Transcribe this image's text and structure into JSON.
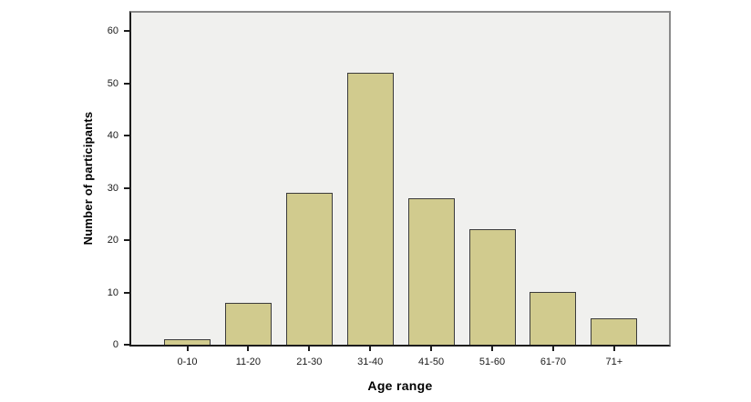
{
  "chart_data": {
    "type": "bar",
    "title": "",
    "xlabel": "Age range",
    "ylabel": "Number of participants",
    "categories": [
      "0-10",
      "11-20",
      "21-30",
      "31-40",
      "41-50",
      "51-60",
      "61-70",
      "71+"
    ],
    "values": [
      1,
      8,
      29,
      52,
      28,
      22,
      10,
      5
    ],
    "yticks": [
      0,
      10,
      20,
      30,
      40,
      50,
      60
    ],
    "ylim": [
      0,
      63
    ],
    "grid": false,
    "legend": null,
    "colors": {
      "bar_fill": "#d1cb8e",
      "bar_border": "#3b3b3b",
      "plot_bg": "#f0f0ee",
      "frame": "#8a8a8a",
      "axis": "#1c1c1c",
      "page_bg": "#ffffff"
    }
  }
}
